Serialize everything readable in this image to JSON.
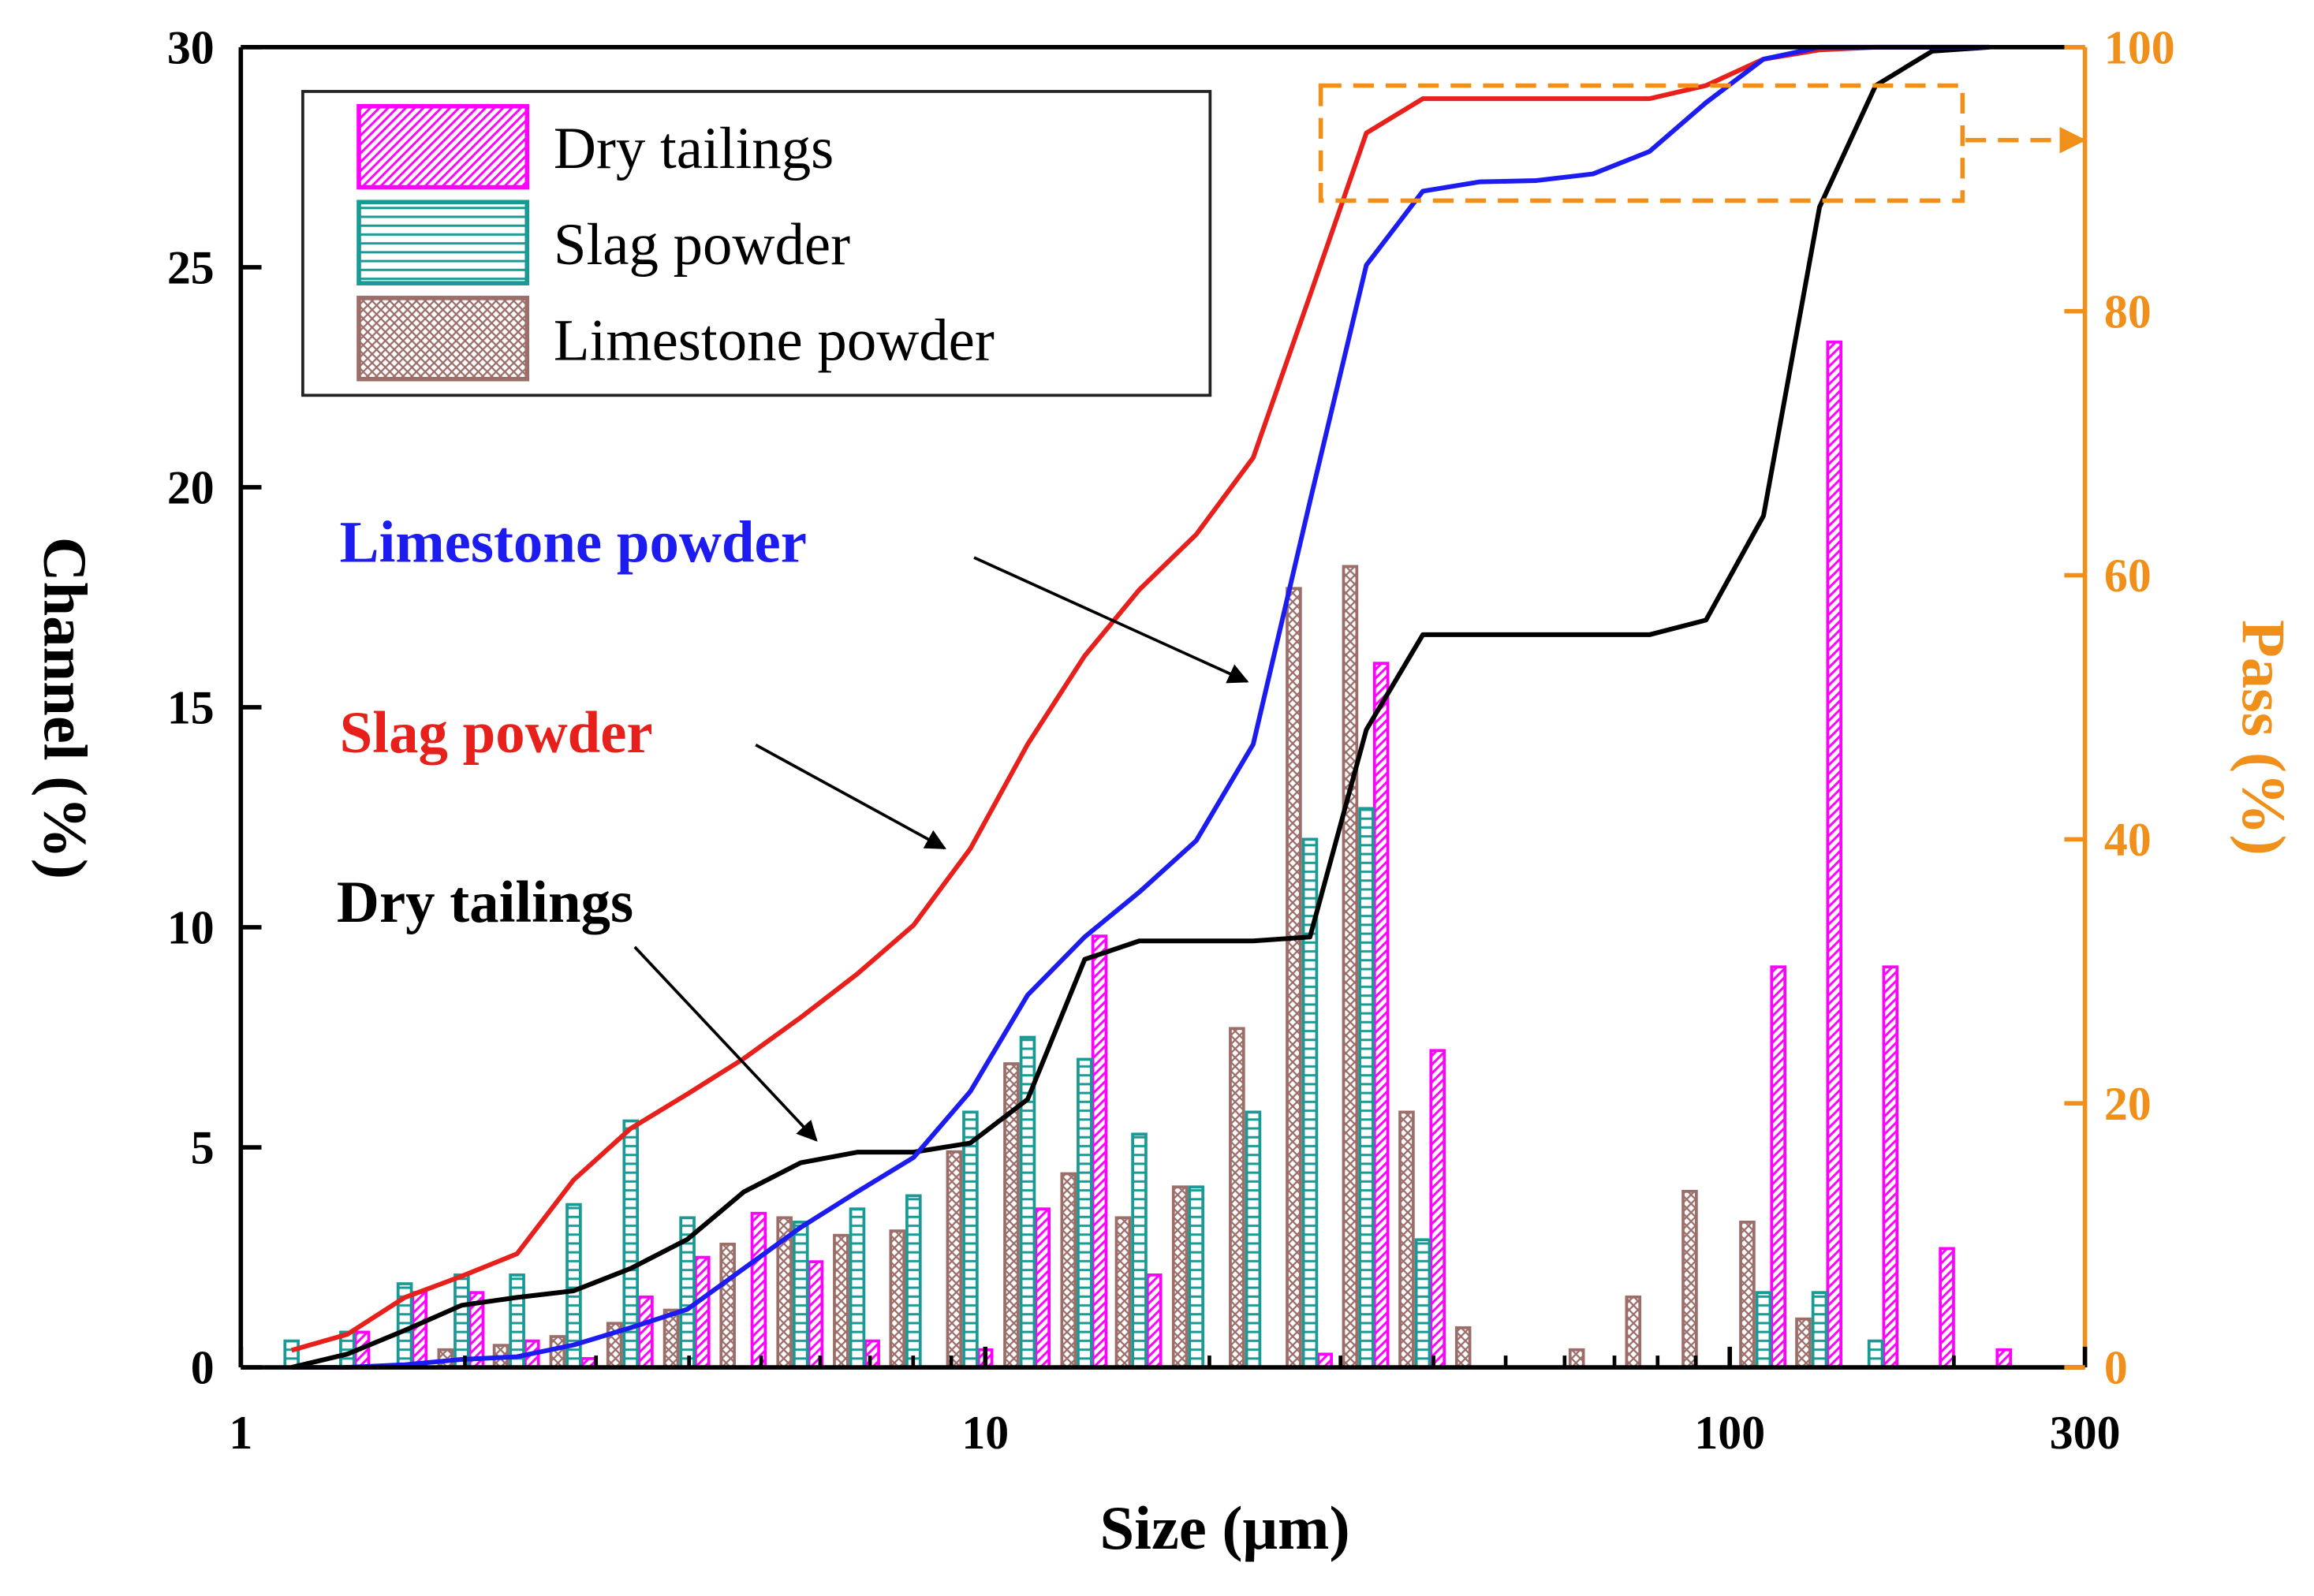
{
  "chart_data": {
    "type": "histogram-cumulative",
    "xlabel": "Size (μm)",
    "ylabel": "Channel (%)",
    "y2label": "Pass (%)",
    "xscale": "log",
    "xlim": [
      1,
      300
    ],
    "xticks": [
      1,
      10,
      100,
      300
    ],
    "xminorticks": [
      2,
      3,
      4,
      5,
      6,
      7,
      8,
      9,
      20,
      30,
      40,
      50,
      60,
      70,
      80,
      90,
      200
    ],
    "ylim": [
      0,
      30
    ],
    "yticks": [
      0,
      5,
      10,
      15,
      20,
      25,
      30
    ],
    "y2lim": [
      0,
      100
    ],
    "y2ticks": [
      0,
      20,
      40,
      60,
      80,
      100
    ],
    "y2color": "#f0901a",
    "legend": "upper left",
    "x": [
      1.17,
      1.39,
      1.66,
      1.98,
      2.35,
      2.8,
      3.34,
      3.98,
      4.74,
      5.65,
      6.73,
      8.01,
      9.55,
      11.4,
      13.6,
      16.1,
      19.2,
      22.9,
      27.3,
      32.5,
      38.7,
      46.1,
      55.0,
      65.5,
      78.0,
      92.9,
      111,
      132,
      157,
      187,
      223
    ],
    "series": [
      {
        "name": "Dry tailings",
        "color": "#ff00ff",
        "pattern": "diagonal",
        "values": [
          0,
          0.8,
          1.7,
          1.7,
          0.6,
          0.2,
          1.6,
          2.5,
          3.5,
          2.4,
          0.6,
          0,
          0.4,
          3.6,
          9.8,
          2.1,
          0,
          0,
          0.3,
          16.0,
          7.2,
          0,
          0,
          0,
          0,
          0,
          9.1,
          23.3,
          9.1,
          2.7,
          0.4
        ]
      },
      {
        "name": "Slag powder",
        "color": "#1a9a94",
        "pattern": "horizontal",
        "values": [
          0.6,
          0.8,
          1.9,
          2.1,
          2.1,
          3.7,
          5.6,
          3.4,
          0,
          3.3,
          3.6,
          3.9,
          5.8,
          7.5,
          7.0,
          5.3,
          4.1,
          5.8,
          12.0,
          12.7,
          2.9,
          0,
          0,
          0,
          0,
          0,
          1.7,
          1.7,
          0.6,
          0,
          0
        ]
      },
      {
        "name": "Limestone powder",
        "color": "#9c6e6a",
        "pattern": "cross",
        "values": [
          0,
          0,
          0,
          0.4,
          0.5,
          0.7,
          1.0,
          1.3,
          2.8,
          3.4,
          3.0,
          3.1,
          4.9,
          6.9,
          4.4,
          3.4,
          4.1,
          7.7,
          17.7,
          18.2,
          5.8,
          0.9,
          0,
          0.4,
          1.6,
          4.0,
          3.3,
          1.1,
          0,
          0,
          0
        ]
      }
    ],
    "cumulative": [
      {
        "label": "Dry tailings",
        "color": "#000000",
        "axis": "y2",
        "values": [
          0,
          1.0,
          2.8,
          4.7,
          5.3,
          5.8,
          7.5,
          9.7,
          13.3,
          15.5,
          16.3,
          16.3,
          17.0,
          20.3,
          30.9,
          32.3,
          32.3,
          32.3,
          32.6,
          48.3,
          55.5,
          55.5,
          55.5,
          55.5,
          55.5,
          56.6,
          64.5,
          87.9,
          97.1,
          99.7,
          100
        ]
      },
      {
        "label": "Slag powder",
        "color": "#e8201c",
        "axis": "y2",
        "values": [
          1.3,
          2.5,
          5.3,
          6.9,
          8.6,
          14.2,
          18.1,
          20.7,
          23.4,
          26.5,
          29.8,
          33.5,
          39.3,
          47.2,
          53.9,
          58.9,
          63.1,
          68.9,
          81.2,
          93.5,
          96.1,
          96.1,
          96.1,
          96.1,
          96.1,
          97.1,
          99.1,
          99.8,
          100,
          100,
          100
        ]
      },
      {
        "label": "Limestone powder",
        "color": "#1c1cf0",
        "axis": "y2",
        "values": [
          0,
          0,
          0.2,
          0.6,
          0.8,
          1.7,
          3.0,
          4.4,
          7.5,
          10.6,
          13.3,
          15.9,
          20.9,
          28.2,
          32.6,
          36.0,
          39.9,
          47.2,
          65.6,
          83.5,
          89.1,
          89.8,
          89.9,
          90.4,
          92.1,
          95.8,
          99.1,
          100,
          100,
          100,
          100
        ]
      }
    ]
  }
}
